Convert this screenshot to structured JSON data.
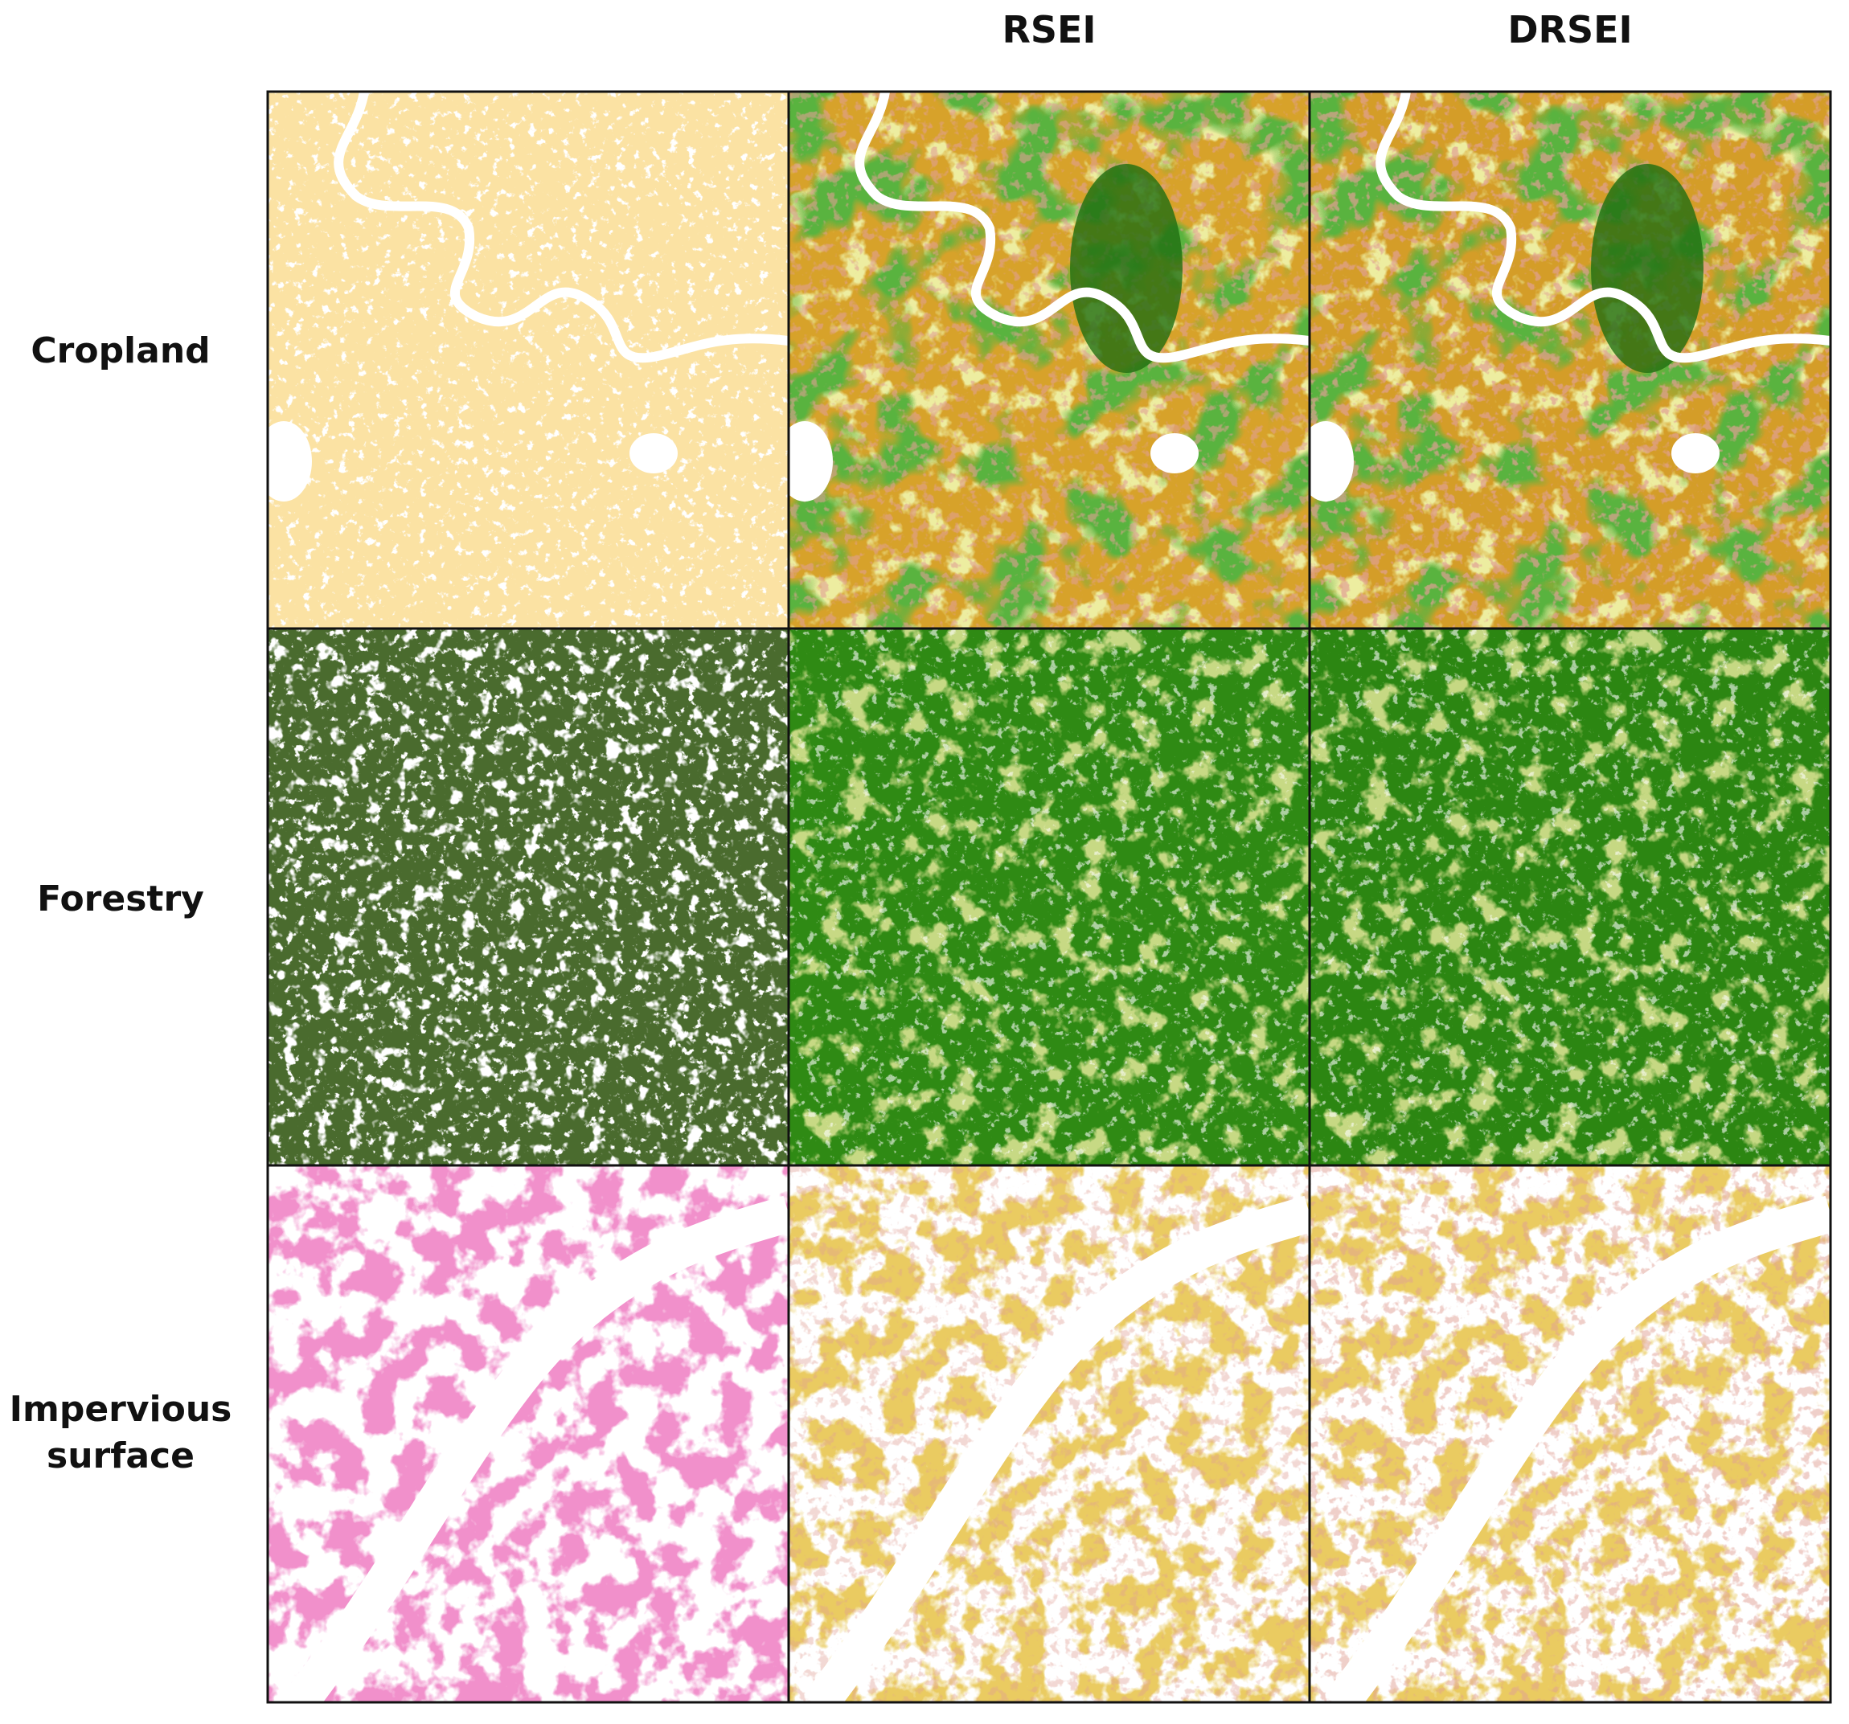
{
  "columns": [
    "RSEI",
    "DRSEI"
  ],
  "rows": [
    {
      "label": "Cropland"
    },
    {
      "label": "Forestry"
    },
    {
      "label": "Impervious surface"
    }
  ]
}
